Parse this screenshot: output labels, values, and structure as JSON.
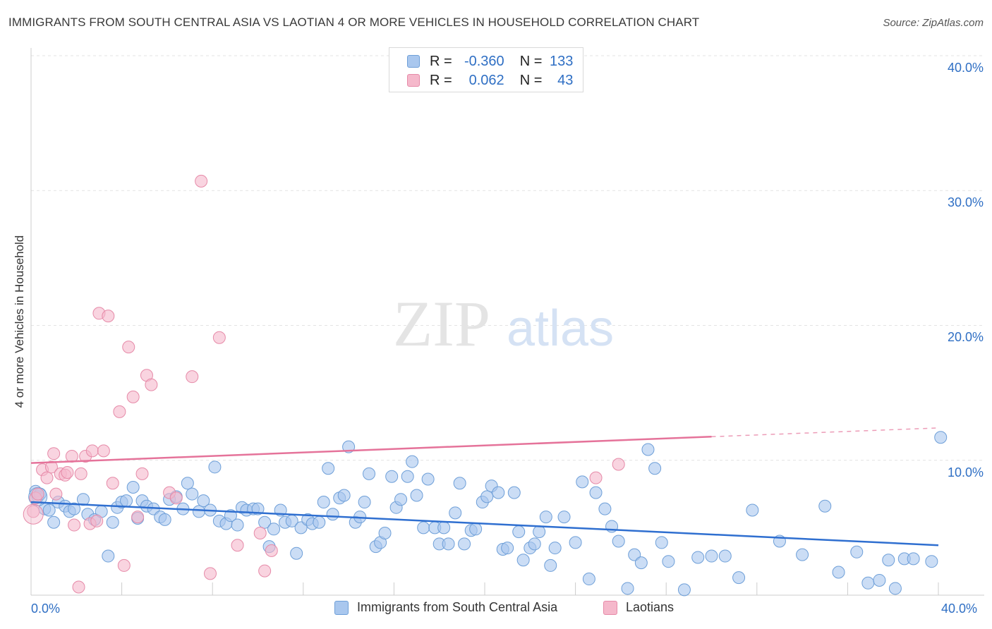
{
  "title": "IMMIGRANTS FROM SOUTH CENTRAL ASIA VS LAOTIAN 4 OR MORE VEHICLES IN HOUSEHOLD CORRELATION CHART",
  "source": "Source: ZipAtlas.com",
  "watermark": {
    "zip": "ZIP",
    "atlas": "atlas"
  },
  "colors": {
    "blue_fill": "#a9c7ee",
    "blue_stroke": "#6e9fd8",
    "blue_line": "#2f6fd0",
    "pink_fill": "#f5b8cb",
    "pink_stroke": "#e68aa8",
    "pink_line": "#e5739a",
    "tick_text": "#2f6fc4",
    "grid": "#e3e3e3"
  },
  "legend_top": {
    "rows": [
      {
        "r_label": "R =",
        "r_value": "-0.360",
        "n_label": "N =",
        "n_value": "133",
        "color": "blue"
      },
      {
        "r_label": "R =",
        "r_value": "0.062",
        "n_label": "N =",
        "n_value": "43",
        "color": "pink"
      }
    ]
  },
  "chart_data": {
    "type": "scatter",
    "title": "IMMIGRANTS FROM SOUTH CENTRAL ASIA VS LAOTIAN 4 OR MORE VEHICLES IN HOUSEHOLD CORRELATION CHART",
    "xlabel": "",
    "ylabel": "4 or more Vehicles in Household",
    "xlim": [
      0,
      40
    ],
    "ylim": [
      0,
      40
    ],
    "x_tick_labels": [
      "0.0%",
      "40.0%"
    ],
    "y_tick_labels": [
      "10.0%",
      "20.0%",
      "30.0%",
      "40.0%"
    ],
    "y_ticks": [
      10,
      20,
      30,
      40
    ],
    "grid": true,
    "legend_position": "bottom",
    "series": [
      {
        "name": "Immigrants from South Central Asia",
        "color": "blue",
        "trend": {
          "x": [
            0,
            40
          ],
          "y": [
            6.9,
            3.7
          ],
          "dashed_from": null
        },
        "points": [
          [
            0.2,
            7.7
          ],
          [
            0.3,
            7.3
          ],
          [
            0.4,
            7.5
          ],
          [
            0.6,
            6.4
          ],
          [
            0.8,
            6.3
          ],
          [
            1.0,
            5.4
          ],
          [
            1.2,
            6.9
          ],
          [
            1.5,
            6.6
          ],
          [
            1.7,
            6.2
          ],
          [
            1.9,
            6.4
          ],
          [
            2.3,
            7.1
          ],
          [
            2.5,
            6.0
          ],
          [
            2.8,
            5.6
          ],
          [
            3.1,
            6.2
          ],
          [
            3.4,
            2.9
          ],
          [
            3.6,
            5.4
          ],
          [
            3.8,
            6.5
          ],
          [
            4.0,
            6.9
          ],
          [
            4.2,
            7.0
          ],
          [
            4.5,
            8.0
          ],
          [
            4.7,
            5.7
          ],
          [
            4.9,
            7.0
          ],
          [
            5.1,
            6.6
          ],
          [
            5.4,
            6.4
          ],
          [
            5.7,
            5.8
          ],
          [
            5.9,
            5.6
          ],
          [
            6.1,
            7.1
          ],
          [
            6.4,
            7.3
          ],
          [
            6.7,
            6.4
          ],
          [
            6.9,
            8.3
          ],
          [
            7.1,
            7.5
          ],
          [
            7.4,
            6.2
          ],
          [
            7.6,
            7.0
          ],
          [
            7.9,
            6.3
          ],
          [
            8.1,
            9.5
          ],
          [
            8.3,
            5.5
          ],
          [
            8.6,
            5.3
          ],
          [
            8.8,
            5.9
          ],
          [
            9.1,
            5.2
          ],
          [
            9.3,
            6.5
          ],
          [
            9.5,
            6.3
          ],
          [
            9.8,
            6.4
          ],
          [
            10.0,
            6.4
          ],
          [
            10.3,
            5.4
          ],
          [
            10.5,
            3.6
          ],
          [
            10.7,
            4.9
          ],
          [
            11.0,
            6.3
          ],
          [
            11.2,
            5.4
          ],
          [
            11.5,
            5.5
          ],
          [
            11.7,
            3.1
          ],
          [
            11.9,
            5.0
          ],
          [
            12.2,
            5.6
          ],
          [
            12.4,
            5.3
          ],
          [
            12.7,
            5.4
          ],
          [
            12.9,
            6.9
          ],
          [
            13.1,
            9.4
          ],
          [
            13.3,
            6.0
          ],
          [
            13.6,
            7.2
          ],
          [
            13.8,
            7.4
          ],
          [
            14.0,
            11.0
          ],
          [
            14.3,
            5.4
          ],
          [
            14.5,
            5.8
          ],
          [
            14.7,
            6.9
          ],
          [
            14.9,
            9.0
          ],
          [
            15.2,
            3.6
          ],
          [
            15.4,
            3.9
          ],
          [
            15.6,
            4.6
          ],
          [
            15.9,
            8.8
          ],
          [
            16.1,
            6.5
          ],
          [
            16.3,
            7.1
          ],
          [
            16.6,
            8.8
          ],
          [
            16.8,
            9.9
          ],
          [
            17.0,
            7.4
          ],
          [
            17.3,
            5.0
          ],
          [
            17.5,
            8.6
          ],
          [
            17.8,
            5.0
          ],
          [
            18.0,
            3.8
          ],
          [
            18.2,
            5.0
          ],
          [
            18.4,
            3.8
          ],
          [
            18.7,
            6.1
          ],
          [
            18.9,
            8.3
          ],
          [
            19.1,
            3.8
          ],
          [
            19.4,
            4.8
          ],
          [
            19.6,
            4.9
          ],
          [
            19.9,
            6.9
          ],
          [
            20.1,
            7.3
          ],
          [
            20.3,
            8.1
          ],
          [
            20.6,
            7.6
          ],
          [
            20.8,
            3.4
          ],
          [
            21.0,
            3.5
          ],
          [
            21.3,
            7.6
          ],
          [
            21.5,
            4.7
          ],
          [
            21.7,
            2.6
          ],
          [
            22.0,
            3.5
          ],
          [
            22.2,
            3.8
          ],
          [
            22.4,
            4.7
          ],
          [
            22.7,
            5.8
          ],
          [
            22.9,
            2.2
          ],
          [
            23.1,
            3.5
          ],
          [
            23.5,
            5.8
          ],
          [
            24.0,
            3.9
          ],
          [
            24.3,
            8.4
          ],
          [
            24.6,
            1.2
          ],
          [
            24.9,
            7.6
          ],
          [
            25.3,
            6.4
          ],
          [
            25.6,
            5.1
          ],
          [
            25.9,
            4.0
          ],
          [
            26.3,
            0.5
          ],
          [
            26.6,
            3.0
          ],
          [
            26.9,
            2.4
          ],
          [
            27.2,
            10.8
          ],
          [
            27.5,
            9.4
          ],
          [
            27.8,
            3.9
          ],
          [
            28.1,
            2.5
          ],
          [
            28.8,
            0.4
          ],
          [
            29.4,
            2.8
          ],
          [
            30.0,
            2.9
          ],
          [
            30.6,
            2.9
          ],
          [
            31.2,
            1.3
          ],
          [
            31.8,
            6.3
          ],
          [
            33.0,
            4.0
          ],
          [
            34.0,
            3.0
          ],
          [
            35.0,
            6.6
          ],
          [
            35.6,
            1.7
          ],
          [
            36.4,
            3.2
          ],
          [
            36.9,
            0.9
          ],
          [
            37.4,
            1.1
          ],
          [
            37.8,
            2.6
          ],
          [
            38.1,
            0.5
          ],
          [
            38.5,
            2.7
          ],
          [
            38.9,
            2.7
          ],
          [
            39.7,
            2.5
          ],
          [
            40.1,
            11.7
          ]
        ]
      },
      {
        "name": "Laotians",
        "color": "pink",
        "trend": {
          "x": [
            0,
            40
          ],
          "y": [
            9.8,
            12.4
          ],
          "dashed_from": 30
        },
        "points": [
          [
            0.1,
            6.2
          ],
          [
            0.2,
            7.2
          ],
          [
            0.3,
            7.5
          ],
          [
            0.5,
            9.3
          ],
          [
            0.7,
            8.7
          ],
          [
            0.9,
            9.5
          ],
          [
            1.0,
            10.5
          ],
          [
            1.1,
            7.5
          ],
          [
            1.3,
            9.0
          ],
          [
            1.5,
            8.9
          ],
          [
            1.6,
            9.1
          ],
          [
            1.8,
            10.3
          ],
          [
            1.9,
            5.2
          ],
          [
            2.1,
            0.6
          ],
          [
            2.2,
            9.0
          ],
          [
            2.4,
            10.3
          ],
          [
            2.6,
            5.3
          ],
          [
            2.7,
            10.7
          ],
          [
            2.9,
            5.5
          ],
          [
            3.0,
            20.9
          ],
          [
            3.2,
            10.7
          ],
          [
            3.4,
            20.7
          ],
          [
            3.6,
            8.3
          ],
          [
            3.9,
            13.6
          ],
          [
            4.1,
            2.2
          ],
          [
            4.3,
            18.4
          ],
          [
            4.5,
            14.7
          ],
          [
            4.7,
            5.8
          ],
          [
            4.9,
            9.0
          ],
          [
            5.1,
            16.3
          ],
          [
            5.3,
            15.6
          ],
          [
            6.1,
            7.6
          ],
          [
            6.4,
            7.2
          ],
          [
            7.1,
            16.2
          ],
          [
            7.5,
            30.7
          ],
          [
            7.9,
            1.6
          ],
          [
            8.3,
            19.1
          ],
          [
            9.1,
            3.7
          ],
          [
            10.1,
            4.6
          ],
          [
            10.3,
            1.8
          ],
          [
            10.6,
            3.3
          ],
          [
            24.9,
            8.7
          ],
          [
            25.9,
            9.7
          ]
        ]
      }
    ]
  },
  "legend_bottom": [
    {
      "label": "Immigrants from South Central Asia",
      "color": "blue"
    },
    {
      "label": "Laotians",
      "color": "pink"
    }
  ]
}
